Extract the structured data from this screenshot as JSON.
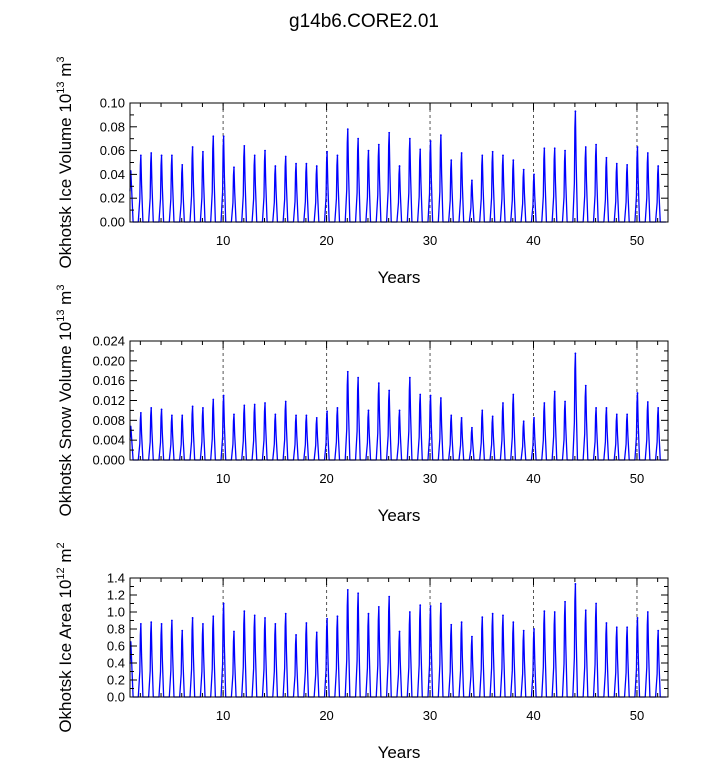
{
  "figure_title": "g14b6.CORE2.01",
  "colors": {
    "series": "#0000ff",
    "axis": "#000000",
    "grid": "#555555"
  },
  "chart_data": [
    {
      "type": "line",
      "title": "",
      "ylabel_main": "Okhotsk Ice Volume 10",
      "ylabel_exp": "13",
      "ylabel_unit": " m",
      "ylabel_unit_exp": "3",
      "xlabel": "Years",
      "xlim": [
        1,
        53
      ],
      "ylim": [
        0,
        0.1
      ],
      "xticks": [
        10,
        20,
        30,
        40,
        50
      ],
      "xtick_labels": [
        "10",
        "20",
        "30",
        "40",
        "50"
      ],
      "yticks": [
        0,
        0.02,
        0.04,
        0.06,
        0.08,
        0.1
      ],
      "ytick_labels": [
        "0.00",
        "0.02",
        "0.04",
        "0.06",
        "0.08",
        "0.10"
      ],
      "grid_x": [
        10,
        20,
        30,
        40,
        50
      ],
      "first_peak": 0.043,
      "annual_peaks": [
        0.056,
        0.058,
        0.056,
        0.056,
        0.048,
        0.063,
        0.059,
        0.072,
        0.072,
        0.046,
        0.064,
        0.056,
        0.06,
        0.047,
        0.055,
        0.049,
        0.049,
        0.047,
        0.059,
        0.056,
        0.078,
        0.07,
        0.06,
        0.065,
        0.075,
        0.047,
        0.07,
        0.061,
        0.068,
        0.073,
        0.052,
        0.058,
        0.035,
        0.056,
        0.059,
        0.056,
        0.052,
        0.044,
        0.04,
        0.062,
        0.062,
        0.06,
        0.093,
        0.063,
        0.065,
        0.054,
        0.049,
        0.048,
        0.063,
        0.058,
        0.047
      ]
    },
    {
      "type": "line",
      "title": "",
      "ylabel_main": "Okhotsk Snow Volume 10",
      "ylabel_exp": "13",
      "ylabel_unit": " m",
      "ylabel_unit_exp": "3",
      "xlabel": "Years",
      "xlim": [
        1,
        53
      ],
      "ylim": [
        0,
        0.024
      ],
      "xticks": [
        10,
        20,
        30,
        40,
        50
      ],
      "xtick_labels": [
        "10",
        "20",
        "30",
        "40",
        "50"
      ],
      "yticks": [
        0,
        0.004,
        0.008,
        0.012,
        0.016,
        0.02,
        0.024
      ],
      "ytick_labels": [
        "0.000",
        "0.004",
        "0.008",
        "0.012",
        "0.016",
        "0.020",
        "0.024"
      ],
      "grid_x": [
        10,
        20,
        30,
        40,
        50
      ],
      "first_peak": 0.0068,
      "annual_peaks": [
        0.0095,
        0.0105,
        0.0102,
        0.009,
        0.009,
        0.0108,
        0.0105,
        0.0122,
        0.013,
        0.0092,
        0.011,
        0.0112,
        0.0115,
        0.0092,
        0.0118,
        0.009,
        0.009,
        0.0085,
        0.0098,
        0.0105,
        0.0178,
        0.0166,
        0.01,
        0.0155,
        0.014,
        0.01,
        0.0166,
        0.0132,
        0.013,
        0.0125,
        0.009,
        0.0085,
        0.0065,
        0.01,
        0.0088,
        0.0115,
        0.0132,
        0.0078,
        0.0085,
        0.0115,
        0.0138,
        0.0118,
        0.0215,
        0.015,
        0.0105,
        0.0105,
        0.0092,
        0.0092,
        0.0135,
        0.0117,
        0.0105
      ]
    },
    {
      "type": "line",
      "title": "",
      "ylabel_main": "Okhotsk Ice Area 10",
      "ylabel_exp": "12",
      "ylabel_unit": " m",
      "ylabel_unit_exp": "2",
      "xlabel": "Years",
      "xlim": [
        1,
        53
      ],
      "ylim": [
        0,
        1.4
      ],
      "xticks": [
        10,
        20,
        30,
        40,
        50
      ],
      "xtick_labels": [
        "10",
        "20",
        "30",
        "40",
        "50"
      ],
      "yticks": [
        0,
        0.2,
        0.4,
        0.6,
        0.8,
        1.0,
        1.2,
        1.4
      ],
      "ytick_labels": [
        "0.0",
        "0.2",
        "0.4",
        "0.6",
        "0.8",
        "1.0",
        "1.2",
        "1.4"
      ],
      "grid_x": [
        10,
        20,
        30,
        40,
        50
      ],
      "first_peak": 0.65,
      "annual_peaks": [
        0.86,
        0.88,
        0.86,
        0.9,
        0.78,
        0.93,
        0.86,
        0.95,
        1.1,
        0.77,
        1.01,
        0.96,
        0.93,
        0.86,
        0.98,
        0.73,
        0.87,
        0.76,
        0.92,
        0.95,
        1.26,
        1.22,
        0.98,
        1.06,
        1.18,
        0.77,
        1.0,
        1.08,
        1.07,
        1.1,
        0.85,
        0.88,
        0.71,
        0.94,
        0.98,
        0.96,
        0.88,
        0.78,
        0.8,
        1.01,
        1.0,
        1.12,
        1.33,
        1.02,
        1.1,
        0.87,
        0.82,
        0.82,
        0.93,
        1.0,
        0.78
      ]
    }
  ]
}
